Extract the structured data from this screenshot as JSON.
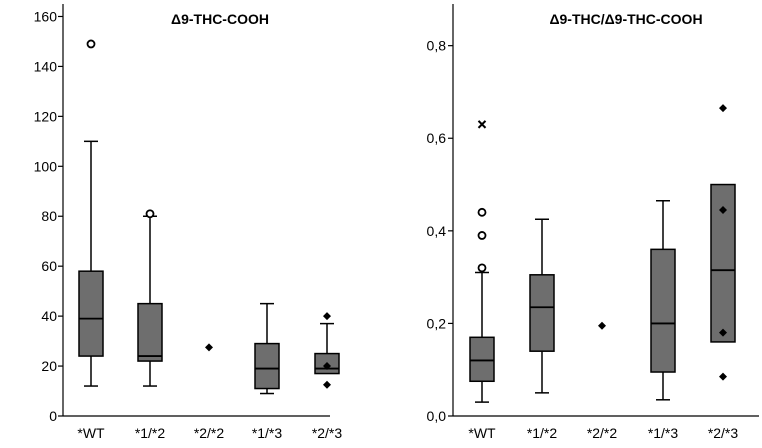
{
  "chart_data": [
    {
      "type": "box",
      "title": "Δ9-THC-COOH",
      "categories": [
        "*WT",
        "*1/*2",
        "*2/*2",
        "*1/*3",
        "*2/*3"
      ],
      "ylim": [
        0,
        165
      ],
      "yticks": [
        0,
        20,
        40,
        60,
        80,
        100,
        120,
        140,
        160
      ],
      "ytick_labels": [
        "0",
        "20",
        "40",
        "60",
        "80",
        "100",
        "120",
        "140",
        "160"
      ],
      "grid": false,
      "boxes": [
        {
          "category": "*WT",
          "min": 12,
          "q1": 24,
          "median": 39,
          "q3": 58,
          "max": 110,
          "outliers": [
            {
              "value": 149,
              "marker": "circle"
            }
          ],
          "points": []
        },
        {
          "category": "*1/*2",
          "min": 12,
          "q1": 22,
          "median": 24,
          "q3": 45,
          "max": 80,
          "outliers": [
            {
              "value": 81,
              "marker": "circle"
            }
          ],
          "points": []
        },
        {
          "category": "*2/*2",
          "points": [
            {
              "value": 27.5,
              "marker": "diamond"
            }
          ]
        },
        {
          "category": "*1/*3",
          "min": 9,
          "q1": 11,
          "median": 19,
          "q3": 29,
          "max": 45,
          "outliers": [],
          "points": []
        },
        {
          "category": "*2/*3",
          "min": 17,
          "q1": 17,
          "median": 19,
          "q3": 25,
          "max": 37,
          "outliers": [],
          "points": [
            {
              "value": 40,
              "marker": "diamond"
            },
            {
              "value": 20,
              "marker": "diamond"
            },
            {
              "value": 12.5,
              "marker": "diamond"
            }
          ]
        }
      ]
    },
    {
      "type": "box",
      "title": "Δ9-THC/Δ9-THC-COOH",
      "categories": [
        "*WT",
        "*1/*2",
        "*2/*2",
        "*1/*3",
        "*2/*3"
      ],
      "ylim": [
        0,
        0.89
      ],
      "yticks": [
        0,
        0.2,
        0.4,
        0.6,
        0.8
      ],
      "ytick_labels": [
        "0,0",
        "0,2",
        "0,4",
        "0,6",
        "0,8"
      ],
      "grid": false,
      "boxes": [
        {
          "category": "*WT",
          "min": 0.03,
          "q1": 0.075,
          "median": 0.12,
          "q3": 0.17,
          "max": 0.31,
          "outliers": [
            {
              "value": 0.63,
              "marker": "x"
            },
            {
              "value": 0.44,
              "marker": "circle"
            },
            {
              "value": 0.39,
              "marker": "circle"
            },
            {
              "value": 0.32,
              "marker": "circle"
            }
          ],
          "points": []
        },
        {
          "category": "*1/*2",
          "min": 0.05,
          "q1": 0.14,
          "median": 0.235,
          "q3": 0.305,
          "max": 0.425,
          "outliers": [],
          "points": []
        },
        {
          "category": "*2/*2",
          "points": [
            {
              "value": 0.195,
              "marker": "diamond"
            }
          ]
        },
        {
          "category": "*1/*3",
          "min": 0.035,
          "q1": 0.095,
          "median": 0.2,
          "q3": 0.36,
          "max": 0.465,
          "outliers": [],
          "points": []
        },
        {
          "category": "*2/*3",
          "min": 0.16,
          "q1": 0.16,
          "median": 0.315,
          "q3": 0.5,
          "max": 0.5,
          "outliers": [],
          "points": [
            {
              "value": 0.665,
              "marker": "diamond"
            },
            {
              "value": 0.445,
              "marker": "diamond"
            },
            {
              "value": 0.18,
              "marker": "diamond"
            },
            {
              "value": 0.085,
              "marker": "diamond"
            }
          ]
        }
      ]
    }
  ],
  "colors": {
    "box_fill": "#6e6e6e",
    "line": "#000000",
    "background": "#ffffff"
  }
}
